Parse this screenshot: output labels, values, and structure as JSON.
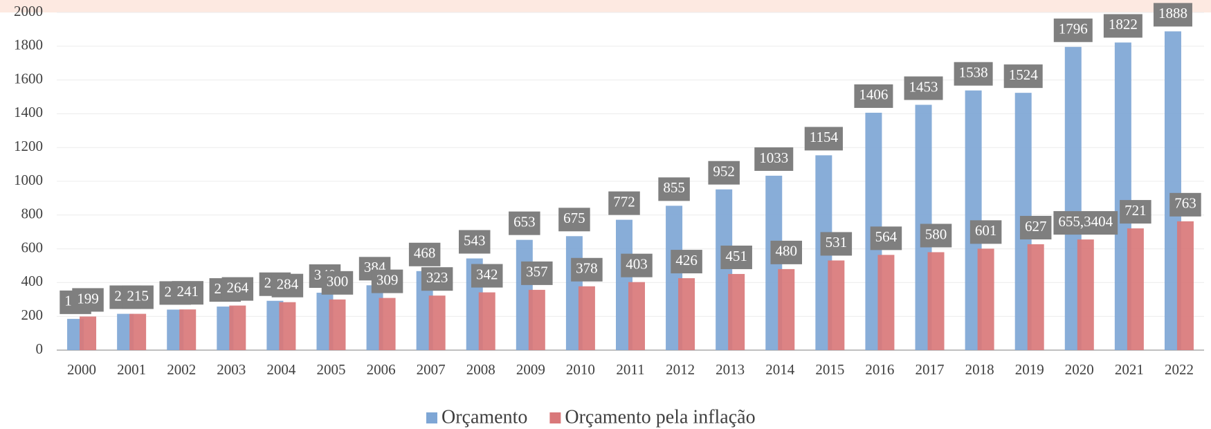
{
  "chart_data": {
    "type": "bar",
    "categories": [
      "2000",
      "2001",
      "2002",
      "2003",
      "2004",
      "2005",
      "2006",
      "2007",
      "2008",
      "2009",
      "2010",
      "2011",
      "2012",
      "2013",
      "2014",
      "2015",
      "2016",
      "2017",
      "2018",
      "2019",
      "2020",
      "2021",
      "2022"
    ],
    "series": [
      {
        "name": "Orçamento",
        "color": "#7ea6d5",
        "values": [
          185,
          215,
          240,
          258,
          292,
          340,
          384,
          468,
          543,
          653,
          675,
          772,
          855,
          952,
          1033,
          1154,
          1406,
          1453,
          1538,
          1524,
          1796,
          1822,
          1888
        ]
      },
      {
        "name": "Orçamento pela inflação",
        "color": "#d9787a",
        "values": [
          199,
          215,
          241,
          264,
          284,
          300,
          309,
          323,
          342,
          357,
          378,
          403,
          426,
          451,
          480,
          531,
          564,
          580,
          601,
          627,
          655.3404,
          721,
          763
        ],
        "value_labels": [
          "199",
          "215",
          "241",
          "264",
          "284",
          "300",
          "309",
          "323",
          "342",
          "357",
          "378",
          "403",
          "426",
          "451",
          "480",
          "531",
          "564",
          "580",
          "601",
          "627",
          "655,3404",
          "721",
          "763"
        ]
      }
    ],
    "ylim": [
      0,
      2000
    ],
    "yticks": [
      0,
      200,
      400,
      600,
      800,
      1000,
      1200,
      1400,
      1600,
      1800,
      2000
    ],
    "grid": true,
    "legend": "bottom"
  }
}
